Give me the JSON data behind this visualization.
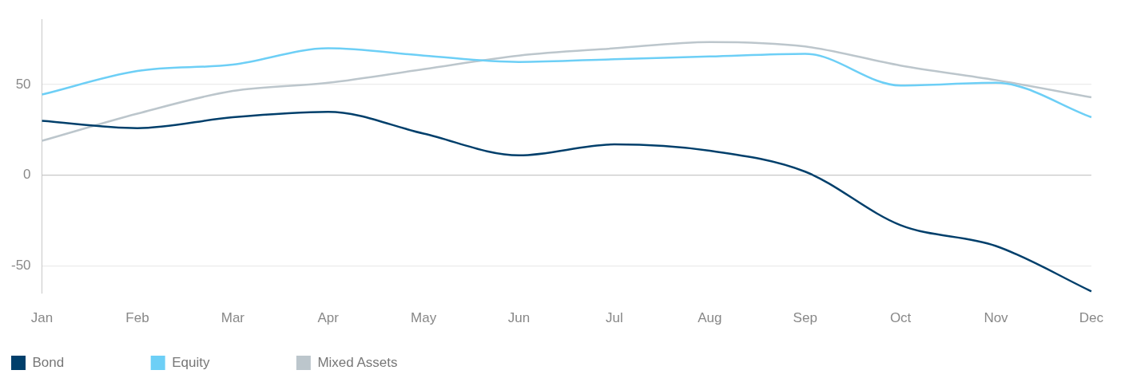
{
  "chart_data": {
    "type": "line",
    "categories": [
      "Jan",
      "Feb",
      "Mar",
      "Apr",
      "May",
      "Jun",
      "Jul",
      "Aug",
      "Sep",
      "Oct",
      "Nov",
      "Dec"
    ],
    "series": [
      {
        "name": "Bond",
        "color": "#003f6b",
        "values": [
          30,
          26,
          32,
          35,
          23,
          11,
          17,
          13.5,
          2,
          -27.5,
          -39,
          -64
        ]
      },
      {
        "name": "Equity",
        "color": "#6dcff6",
        "values": [
          44.5,
          57.5,
          61,
          70,
          66,
          62.5,
          64,
          65.5,
          67,
          49.5,
          51,
          32
        ]
      },
      {
        "name": "Mixed Assets",
        "color": "#bcc6cc",
        "values": [
          19,
          34,
          46.5,
          51,
          58.5,
          66,
          70,
          73.5,
          71,
          60.5,
          52.5,
          43
        ]
      }
    ],
    "ylim": [
      -65,
      86
    ],
    "yticks": [
      -50,
      0,
      50
    ],
    "grid": "y",
    "legend": "bottom left",
    "marker": "none",
    "line_style": "solid"
  }
}
